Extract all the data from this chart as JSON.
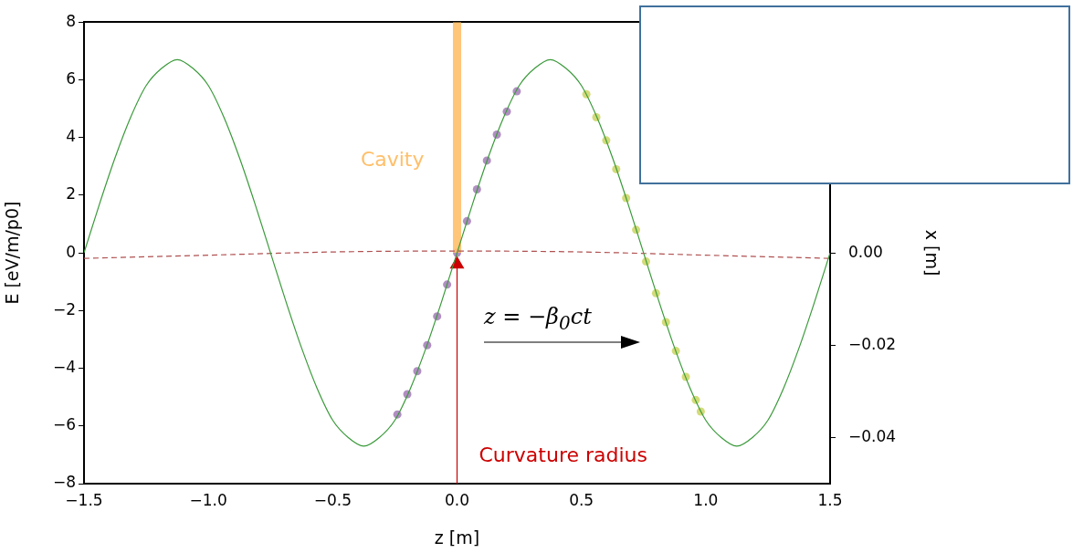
{
  "chart_data": {
    "type": "line",
    "xlabel": "z [m]",
    "ylabel": "E [eV/m/p0]",
    "y2label": "x [m]",
    "xlim": [
      -1.5,
      1.5
    ],
    "xticks": [
      {
        "value": -1.5,
        "label": "−1.5"
      },
      {
        "value": -1,
        "label": "−1.0"
      },
      {
        "value": -0.5,
        "label": "−0.5"
      },
      {
        "value": 0,
        "label": "0.0"
      },
      {
        "value": 0.5,
        "label": "0.5"
      },
      {
        "value": 1,
        "label": "1.0"
      },
      {
        "value": 1.5,
        "label": "1.5"
      }
    ],
    "ylim": [
      -8,
      8
    ],
    "yticks": [
      {
        "value": -8,
        "label": "−8"
      },
      {
        "value": -6,
        "label": "−6"
      },
      {
        "value": -4,
        "label": "−4"
      },
      {
        "value": -2,
        "label": "−2"
      },
      0,
      2,
      4,
      6,
      8
    ],
    "y2lim": [
      -0.05,
      0.05
    ],
    "y2ticks": [
      {
        "value": -0.04,
        "label": "−0.04"
      },
      {
        "value": -0.02,
        "label": "−0.02"
      },
      {
        "value": 0,
        "label": "0.00"
      }
    ],
    "grid": false,
    "legend": false,
    "annotations": [
      "z = −β$_{0}$ct"
    ],
    "series": [
      {
        "color": "#3a9a3a",
        "marker": "none",
        "x": [
          -1.5,
          -1.4375,
          -1.375,
          -1.3125,
          -1.25,
          -1.1875,
          -1.125,
          -1.0625,
          -1,
          -0.9375,
          -0.875,
          -0.8125,
          -0.75,
          -0.6875,
          -0.625,
          -0.5625,
          -0.5,
          -0.4375,
          -0.375,
          -0.3125,
          -0.25,
          -0.1875,
          -0.125,
          -0.0625,
          0,
          0.0625,
          0.125,
          0.1875,
          0.25,
          0.3125,
          0.375,
          0.4375,
          0.5,
          0.5625,
          0.625,
          0.6875,
          0.75,
          0.8125,
          0.875,
          0.9375,
          1,
          1.0625,
          1.125,
          1.1875,
          1.25,
          1.3125,
          1.375,
          1.4375,
          1.5
        ],
        "values": [
          0,
          1.7,
          3.3,
          4.7,
          5.8,
          6.4,
          6.7,
          6.4,
          5.8,
          4.7,
          3.3,
          1.7,
          0,
          -1.7,
          -3.3,
          -4.7,
          -5.8,
          -6.4,
          -6.7,
          -6.4,
          -5.8,
          -4.7,
          -3.3,
          -1.7,
          0,
          1.7,
          3.3,
          4.7,
          5.8,
          6.4,
          6.7,
          6.4,
          5.8,
          4.7,
          3.3,
          1.7,
          0,
          -1.7,
          -3.3,
          -4.7,
          -5.8,
          -6.4,
          -6.7,
          -6.4,
          -5.8,
          -4.7,
          -3.3,
          -1.7,
          0
        ]
      },
      {
        "axis": "y2",
        "color": "#b05050",
        "marker": "none",
        "line_style": "dashed",
        "x": [
          -1.5,
          -1,
          -0.5,
          0,
          0.5,
          1,
          1.5
        ],
        "values": [
          -0.0012,
          -0.0005,
          0.0002,
          0.0004,
          0.0002,
          -0.0005,
          -0.0012
        ]
      },
      {
        "name": "Cavity",
        "color": "#ffbf6a",
        "marker": "none",
        "x": [
          0,
          0
        ],
        "values": [
          0,
          8
        ]
      },
      {
        "name": "Curvature radius",
        "color": "#cc0000",
        "marker": "triangle",
        "x": [
          0,
          0
        ],
        "values": [
          -8,
          -0.4
        ]
      },
      {
        "type": "scatter",
        "color": "#8e5ea8",
        "marker": "circle",
        "x": [
          -0.24,
          -0.2,
          -0.16,
          -0.12,
          -0.08,
          -0.04,
          0,
          0.04,
          0.08,
          0.12,
          0.16,
          0.2,
          0.24
        ],
        "values": [
          -5.6,
          -4.9,
          -4.1,
          -3.2,
          -2.2,
          -1.1,
          0,
          1.1,
          2.2,
          3.2,
          4.1,
          4.9,
          5.6
        ]
      },
      {
        "type": "scatter",
        "color": "#c0cc40",
        "marker": "circle",
        "x": [
          0.52,
          0.56,
          0.6,
          0.64,
          0.68,
          0.72,
          0.76,
          0.8,
          0.84,
          0.88,
          0.92,
          0.96,
          0.98
        ],
        "values": [
          5.5,
          4.7,
          3.9,
          2.9,
          1.9,
          0.8,
          -0.3,
          -1.4,
          -2.4,
          -3.4,
          -4.3,
          -5.1,
          -5.5
        ]
      }
    ]
  }
}
